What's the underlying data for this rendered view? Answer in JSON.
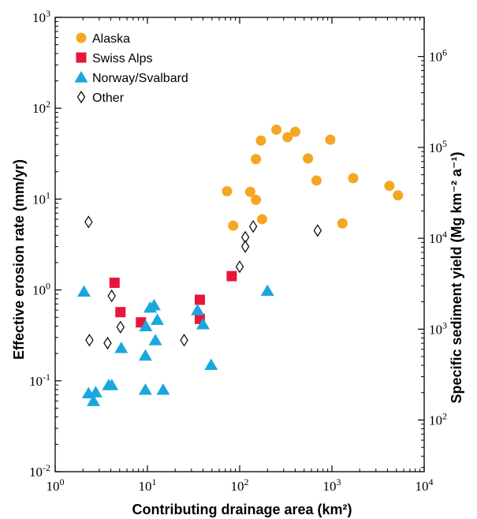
{
  "chart_data": {
    "type": "scatter",
    "title": "",
    "xlabel": "Contributing drainage area (km²)",
    "ylabel": "Effective erosion rate (mm/yr)",
    "y2label": "Specific sediment yield (Mg km⁻² a⁻¹)",
    "x_scale": "log",
    "y_scale": "log",
    "y2_scale": "log",
    "xlim": [
      1,
      10000
    ],
    "ylim": [
      0.01,
      1000
    ],
    "y2lim": [
      27,
      2700000
    ],
    "x_ticks": [
      {
        "value": 1,
        "base": "10",
        "exp": "0"
      },
      {
        "value": 10,
        "base": "10",
        "exp": "1"
      },
      {
        "value": 100,
        "base": "10",
        "exp": "2"
      },
      {
        "value": 1000,
        "base": "10",
        "exp": "3"
      },
      {
        "value": 10000,
        "base": "10",
        "exp": "4"
      }
    ],
    "y_ticks": [
      {
        "value": 0.01,
        "base": "10",
        "exp": "-2"
      },
      {
        "value": 0.1,
        "base": "10",
        "exp": "-1"
      },
      {
        "value": 1,
        "base": "10",
        "exp": "0"
      },
      {
        "value": 10,
        "base": "10",
        "exp": "1"
      },
      {
        "value": 100,
        "base": "10",
        "exp": "2"
      },
      {
        "value": 1000,
        "base": "10",
        "exp": "3"
      }
    ],
    "y2_ticks": [
      {
        "value": 100,
        "base": "10",
        "exp": "2"
      },
      {
        "value": 1000,
        "base": "10",
        "exp": "3"
      },
      {
        "value": 10000,
        "base": "10",
        "exp": "4"
      },
      {
        "value": 100000,
        "base": "10",
        "exp": "5"
      },
      {
        "value": 1000000,
        "base": "10",
        "exp": "6"
      }
    ],
    "legend_position": "top-left",
    "grid": false,
    "series": [
      {
        "name": "Alaska",
        "marker": "circle",
        "color": "#f5a623",
        "points": [
          [
            73,
            12.2
          ],
          [
            85,
            5.1
          ],
          [
            130,
            12
          ],
          [
            150,
            27.5
          ],
          [
            150,
            9.8
          ],
          [
            170,
            44
          ],
          [
            175,
            6
          ],
          [
            250,
            58
          ],
          [
            330,
            48
          ],
          [
            400,
            55
          ],
          [
            550,
            28
          ],
          [
            680,
            16
          ],
          [
            960,
            45
          ],
          [
            1300,
            5.4
          ],
          [
            1700,
            17
          ],
          [
            4200,
            14
          ],
          [
            5200,
            11
          ]
        ]
      },
      {
        "name": "Swiss Alps",
        "marker": "square",
        "color": "#e8163c",
        "points": [
          [
            4.4,
            1.2
          ],
          [
            5.1,
            0.57
          ],
          [
            8.5,
            0.44
          ],
          [
            37,
            0.78
          ],
          [
            37,
            0.48
          ],
          [
            82,
            1.42
          ]
        ]
      },
      {
        "name": "Norway/Svalbard",
        "marker": "triangle",
        "color": "#1aa7dd",
        "points": [
          [
            2.05,
            0.96
          ],
          [
            2.3,
            0.073
          ],
          [
            2.6,
            0.06
          ],
          [
            2.75,
            0.075
          ],
          [
            3.8,
            0.09
          ],
          [
            4.1,
            0.09
          ],
          [
            5.2,
            0.23
          ],
          [
            9.5,
            0.08
          ],
          [
            9.5,
            0.19
          ],
          [
            9.6,
            0.4
          ],
          [
            10.7,
            0.64
          ],
          [
            11.8,
            0.68
          ],
          [
            12.2,
            0.28
          ],
          [
            12.8,
            0.47
          ],
          [
            14.8,
            0.08
          ],
          [
            35,
            0.6
          ],
          [
            40,
            0.42
          ],
          [
            49,
            0.15
          ],
          [
            200,
            0.98
          ]
        ]
      },
      {
        "name": "Other",
        "marker": "diamond",
        "color": "#000000",
        "points": [
          [
            2.3,
            5.6
          ],
          [
            2.35,
            0.28
          ],
          [
            3.7,
            0.26
          ],
          [
            4.1,
            0.86
          ],
          [
            5.1,
            0.39
          ],
          [
            25,
            0.28
          ],
          [
            100,
            1.8
          ],
          [
            115,
            3.8
          ],
          [
            115,
            3.0
          ],
          [
            140,
            5.0
          ],
          [
            700,
            4.5
          ]
        ]
      }
    ]
  }
}
